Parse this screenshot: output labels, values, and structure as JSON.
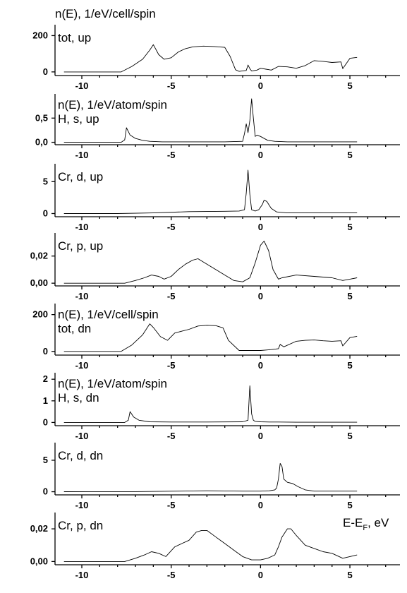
{
  "header_label": "n(E), 1/eV/cell/spin",
  "energy_axis_label": "E-E",
  "energy_axis_label_sub": "F",
  "energy_axis_label_unit": ", eV",
  "chart_data": [
    {
      "type": "line",
      "panel_label": "tot, up",
      "xlim": [
        -11.5,
        7.8
      ],
      "ylim": [
        -20,
        260
      ],
      "x_ticks": [
        -10,
        -5,
        0,
        5
      ],
      "x_tick_labels": [
        "-10",
        "-5",
        "0",
        "5"
      ],
      "y_ticks": [
        0,
        200
      ],
      "y_tick_labels": [
        "0",
        "200"
      ],
      "series": [
        {
          "x": [
            -11,
            -7.8,
            -7.2,
            -6.6,
            -6.2,
            -6.0,
            -5.7,
            -5.4,
            -5.0,
            -4.6,
            -4.2,
            -3.8,
            -3.2,
            -2.6,
            -2.0,
            -1.7,
            -1.4,
            -1.2,
            -0.8,
            -0.7,
            -0.6,
            -0.5,
            -0.2,
            0.0,
            0.3,
            0.6,
            1.0,
            1.5,
            2.0,
            2.5,
            3.0,
            3.5,
            4.0,
            4.5,
            4.6,
            5.0,
            5.4
          ],
          "y": [
            0,
            0,
            30,
            70,
            120,
            150,
            95,
            70,
            78,
            110,
            128,
            138,
            142,
            140,
            135,
            85,
            12,
            3,
            8,
            38,
            18,
            5,
            10,
            20,
            15,
            10,
            30,
            28,
            20,
            35,
            62,
            58,
            52,
            55,
            18,
            75,
            80
          ]
        }
      ]
    },
    {
      "type": "line",
      "panel_label": "H, s, up",
      "sub_header_label": "n(E), 1/eV/atom/spin",
      "xlim": [
        -11.5,
        7.8
      ],
      "ylim": [
        -0.05,
        1.0
      ],
      "x_ticks": [
        -10,
        -5,
        0,
        5
      ],
      "x_tick_labels": [
        "-10",
        "-5",
        "0",
        "5"
      ],
      "y_ticks": [
        0,
        0.5
      ],
      "y_tick_labels": [
        "0,0",
        "0,5"
      ],
      "series": [
        {
          "x": [
            -11,
            -7.8,
            -7.6,
            -7.5,
            -7.3,
            -7.0,
            -6.6,
            -6.2,
            -5.5,
            -4.0,
            -2.0,
            -1.0,
            -0.9,
            -0.8,
            -0.7,
            -0.6,
            -0.5,
            -0.4,
            -0.3,
            -0.2,
            0.0,
            0.1,
            0.4,
            0.8,
            1.5,
            3.0,
            5.4
          ],
          "y": [
            0,
            0,
            0.05,
            0.3,
            0.15,
            0.08,
            0.04,
            0.02,
            0.01,
            0.01,
            0.01,
            0.02,
            0.18,
            0.38,
            0.2,
            0.45,
            0.9,
            0.5,
            0.12,
            0.15,
            0.12,
            0.1,
            0.04,
            0.02,
            0.01,
            0.01,
            0.01
          ]
        }
      ]
    },
    {
      "type": "line",
      "panel_label": "Cr, d, up",
      "xlim": [
        -11.5,
        7.8
      ],
      "ylim": [
        -0.5,
        7.8
      ],
      "x_ticks": [
        -10,
        -5,
        0,
        5
      ],
      "x_tick_labels": [
        "-10",
        "-5",
        "0",
        "5"
      ],
      "y_ticks": [
        0,
        5
      ],
      "y_tick_labels": [
        "0",
        "5"
      ],
      "series": [
        {
          "x": [
            -11,
            -8,
            -6,
            -4,
            -2,
            -1.2,
            -0.9,
            -0.8,
            -0.7,
            -0.6,
            -0.5,
            -0.3,
            -0.1,
            0.1,
            0.2,
            0.35,
            0.6,
            0.9,
            1.5,
            2.5,
            3.5,
            4.5,
            5.4
          ],
          "y": [
            0,
            0,
            0.1,
            0.3,
            0.35,
            0.4,
            0.6,
            3.2,
            6.8,
            3.0,
            0.6,
            0.4,
            0.6,
            1.4,
            2.1,
            1.9,
            0.8,
            0.25,
            0.1,
            0.12,
            0.1,
            0.1,
            0.1
          ]
        }
      ]
    },
    {
      "type": "line",
      "panel_label": "Cr, p, up",
      "xlim": [
        -11.5,
        7.8
      ],
      "ylim": [
        -0.002,
        0.037
      ],
      "x_ticks": [
        -10,
        -5,
        0,
        5
      ],
      "x_tick_labels": [
        "-10",
        "-5",
        "0",
        "5"
      ],
      "y_ticks": [
        0,
        0.02
      ],
      "y_tick_labels": [
        "0,00",
        "0,02"
      ],
      "series": [
        {
          "x": [
            -11,
            -7.6,
            -7.0,
            -6.5,
            -6.1,
            -5.7,
            -5.4,
            -5.0,
            -4.6,
            -4.2,
            -3.8,
            -3.5,
            -3.0,
            -2.5,
            -2.0,
            -1.5,
            -1.0,
            -0.6,
            -0.3,
            0.0,
            0.2,
            0.45,
            0.7,
            1.0,
            1.2,
            2.0,
            3.0,
            4.0,
            4.6,
            5.0,
            5.4
          ],
          "y": [
            0,
            0,
            0.002,
            0.004,
            0.006,
            0.005,
            0.003,
            0.005,
            0.01,
            0.014,
            0.017,
            0.018,
            0.014,
            0.01,
            0.006,
            0.002,
            0.001,
            0.004,
            0.015,
            0.028,
            0.031,
            0.024,
            0.01,
            0.003,
            0.004,
            0.006,
            0.005,
            0.004,
            0.002,
            0.003,
            0.004
          ]
        }
      ]
    },
    {
      "type": "line",
      "panel_label": "tot, dn",
      "sub_header_label": "n(E), 1/eV/cell/spin",
      "xlim": [
        -11.5,
        7.8
      ],
      "ylim": [
        -20,
        260
      ],
      "x_ticks": [
        -10,
        -5,
        0,
        5
      ],
      "x_tick_labels": [
        "-10",
        "-5",
        "0",
        "5"
      ],
      "y_ticks": [
        0,
        200
      ],
      "y_tick_labels": [
        "0",
        "200"
      ],
      "series": [
        {
          "x": [
            -11,
            -7.8,
            -7.2,
            -6.6,
            -6.2,
            -6.0,
            -5.6,
            -5.2,
            -4.8,
            -4.4,
            -4.0,
            -3.5,
            -3.0,
            -2.5,
            -2.1,
            -1.8,
            -1.2,
            0.0,
            0.6,
            1.0,
            1.1,
            1.3,
            2.0,
            2.5,
            3.0,
            3.5,
            4.0,
            4.5,
            4.6,
            5.0,
            5.4
          ],
          "y": [
            0,
            0,
            35,
            90,
            150,
            130,
            80,
            60,
            100,
            110,
            120,
            138,
            142,
            140,
            128,
            60,
            5,
            5,
            10,
            15,
            38,
            25,
            55,
            60,
            62,
            58,
            55,
            58,
            30,
            75,
            82
          ]
        }
      ]
    },
    {
      "type": "line",
      "panel_label": "H, s, dn",
      "sub_header_label": "n(E), 1/eV/atom/spin",
      "xlim": [
        -11.5,
        7.8
      ],
      "ylim": [
        -0.15,
        2.3
      ],
      "x_ticks": [
        -10,
        -5,
        0,
        5
      ],
      "x_tick_labels": [
        "-10",
        "-5",
        "0",
        "5"
      ],
      "y_ticks": [
        0,
        1,
        2
      ],
      "y_tick_labels": [
        "0",
        "1",
        "2"
      ],
      "series": [
        {
          "x": [
            -11,
            -7.6,
            -7.4,
            -7.3,
            -7.1,
            -6.8,
            -6.2,
            -5.0,
            -3.0,
            -1.0,
            -0.7,
            -0.6,
            -0.5,
            -0.4,
            -0.3,
            0.0,
            0.5,
            1.0,
            2.0,
            3.5,
            5.4
          ],
          "y": [
            0,
            0,
            0.1,
            0.5,
            0.25,
            0.1,
            0.03,
            0.02,
            0.02,
            0.03,
            0.1,
            1.7,
            0.4,
            0.1,
            0.05,
            0.03,
            0.02,
            0.02,
            0.01,
            0.01,
            0.01
          ]
        }
      ]
    },
    {
      "type": "line",
      "panel_label": "Cr, d, dn",
      "xlim": [
        -11.5,
        7.8
      ],
      "ylim": [
        -0.5,
        7.8
      ],
      "x_ticks": [
        -10,
        -5,
        0,
        5
      ],
      "x_tick_labels": [
        "-10",
        "-5",
        "0",
        "5"
      ],
      "y_ticks": [
        0,
        5
      ],
      "y_tick_labels": [
        "0",
        "5"
      ],
      "series": [
        {
          "x": [
            -11,
            -7,
            -5,
            -3,
            -1,
            0.0,
            0.5,
            0.8,
            0.9,
            1.0,
            1.1,
            1.2,
            1.3,
            1.5,
            1.8,
            2.1,
            2.5,
            3.0,
            4.0,
            5.4
          ],
          "y": [
            0,
            0.02,
            0.08,
            0.15,
            0.1,
            0.1,
            0.15,
            0.3,
            0.6,
            2.0,
            4.5,
            4.0,
            2.0,
            1.5,
            1.3,
            0.8,
            0.3,
            0.1,
            0.1,
            0.1
          ]
        }
      ]
    },
    {
      "type": "line",
      "panel_label": "Cr, p, dn",
      "xlim": [
        -11.5,
        7.8
      ],
      "ylim": [
        -0.002,
        0.03
      ],
      "x_ticks": [
        -10,
        -5,
        0,
        5
      ],
      "x_tick_labels": [
        "-10",
        "-5",
        "0",
        "5"
      ],
      "y_ticks": [
        0,
        0.02
      ],
      "y_tick_labels": [
        "0,00",
        "0,02"
      ],
      "series": [
        {
          "x": [
            -11,
            -7.6,
            -7.0,
            -6.5,
            -6.1,
            -5.7,
            -5.3,
            -4.8,
            -4.4,
            -4.0,
            -3.6,
            -3.3,
            -3.0,
            -2.5,
            -2.0,
            -1.5,
            -1.0,
            -0.5,
            0.0,
            0.4,
            0.8,
            1.0,
            1.2,
            1.5,
            1.7,
            2.0,
            2.5,
            3.0,
            3.5,
            4.0,
            4.6,
            5.0,
            5.4
          ],
          "y": [
            0,
            0,
            0.002,
            0.004,
            0.006,
            0.005,
            0.003,
            0.009,
            0.011,
            0.013,
            0.018,
            0.019,
            0.019,
            0.015,
            0.011,
            0.007,
            0.003,
            0.001,
            0.001,
            0.002,
            0.004,
            0.009,
            0.015,
            0.02,
            0.02,
            0.016,
            0.01,
            0.008,
            0.006,
            0.005,
            0.002,
            0.003,
            0.004
          ]
        }
      ]
    }
  ]
}
